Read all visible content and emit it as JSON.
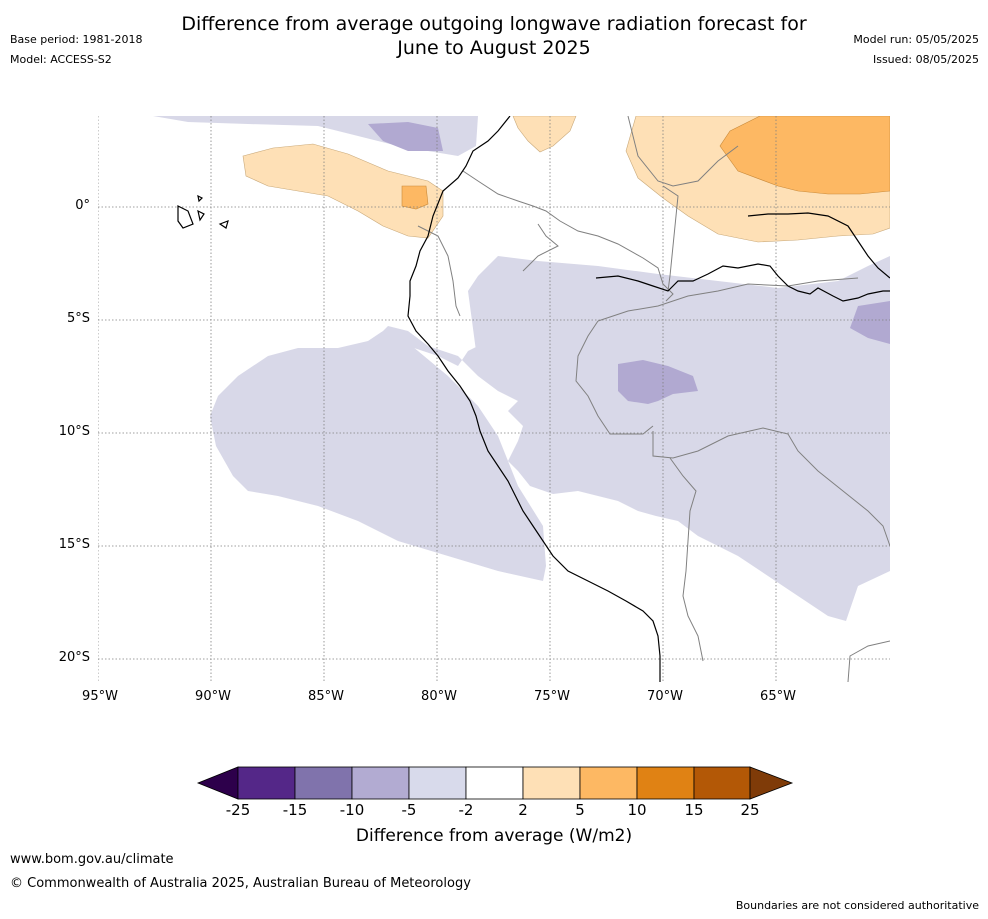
{
  "header": {
    "title_line1": "Difference from average outgoing longwave radiation forecast for",
    "title_line2": "June to August 2025",
    "base_period": "Base period: 1981-2018",
    "model": "Model: ACCESS-S2",
    "model_run": "Model run: 05/05/2025",
    "issued": "Issued: 08/05/2025"
  },
  "map": {
    "lat_labels": [
      "0°",
      "5°S",
      "10°S",
      "15°S",
      "20°S"
    ],
    "lon_labels": [
      "95°W",
      "90°W",
      "85°W",
      "80°W",
      "75°W",
      "70°W",
      "65°W"
    ],
    "colors": {
      "light_purple": "#d8d8e8",
      "mid_purple": "#b1a9d1",
      "light_orange": "#fee0b6",
      "mid_orange": "#fdb863",
      "grid": "#808080",
      "coast": "#000000",
      "border": "#808080"
    }
  },
  "colorbar": {
    "ticks": [
      "-25",
      "-15",
      "-10",
      "-5",
      "-2",
      "2",
      "5",
      "10",
      "15",
      "25"
    ],
    "colors": [
      "#2d004b",
      "#542788",
      "#8073ac",
      "#b2abd2",
      "#d8daeb",
      "#ffffff",
      "#fee0b6",
      "#fdb863",
      "#e08214",
      "#b35806",
      "#7f3b08"
    ],
    "label": "Difference from average (W/m2)"
  },
  "footer": {
    "website": "www.bom.gov.au/climate",
    "copyright": "© Commonwealth of Australia 2025, Australian Bureau of Meteorology",
    "disclaimer": "Boundaries are not considered authoritative"
  }
}
